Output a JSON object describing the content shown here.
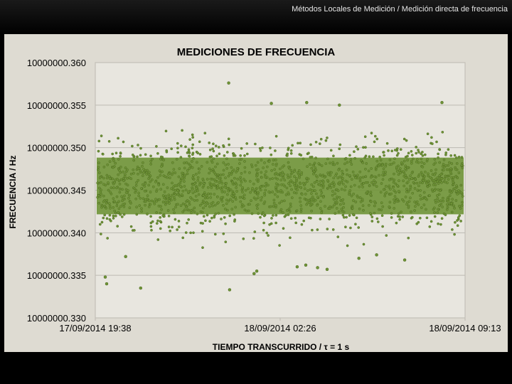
{
  "slide": {
    "title": "Métodos Locales de Medición / Medición directa de frecuencia"
  },
  "colors": {
    "slide_background": "#000000",
    "chart_panel": "#dedbd2",
    "plot_area": "#e8e6df",
    "series": "#6f9437",
    "series_dark": "#4d6a21",
    "gridline": "#bdbab2"
  },
  "chart_data": {
    "type": "scatter",
    "title": "MEDICIONES DE FRECUENCIA",
    "xlabel": "TIEMPO TRANSCURRIDO  / τ = 1 s",
    "ylabel": "FRECUENCIA / Hz",
    "ylim": [
      10000000.33,
      10000000.36
    ],
    "xlim": [
      "2014-09-17 19:38",
      "2014-09-18 09:13"
    ],
    "y_ticks": [
      "10000000.360",
      "10000000.355",
      "10000000.350",
      "10000000.345",
      "10000000.340",
      "10000000.335",
      "10000000.330"
    ],
    "x_ticks": [
      "17/09/2014 19:38",
      "18/09/2014 02:26",
      "18/09/2014 09:13"
    ],
    "grid": true,
    "legend": "none",
    "series_summary": {
      "band_center_hz": 10000000.3455,
      "band_lower_hz": 10000000.3415,
      "band_upper_hz": 10000000.3495,
      "sampling_interval": "1 s"
    },
    "points": [
      {
        "x": "2014-09-18 00:32",
        "y": 10000000.3576
      },
      {
        "x": "2014-09-18 02:06",
        "y": 10000000.3552
      },
      {
        "x": "2014-09-18 03:24",
        "y": 10000000.3553
      },
      {
        "x": "2014-09-18 04:36",
        "y": 10000000.355
      },
      {
        "x": "2014-09-18 08:22",
        "y": 10000000.3553
      },
      {
        "x": "2014-09-18 00:34",
        "y": 10000000.3333
      },
      {
        "x": "2014-09-17 21:18",
        "y": 10000000.3335
      },
      {
        "x": "2014-09-17 20:03",
        "y": 10000000.334
      },
      {
        "x": "2014-09-17 20:00",
        "y": 10000000.3348
      },
      {
        "x": "2014-09-18 01:34",
        "y": 10000000.3355
      },
      {
        "x": "2014-09-18 01:28",
        "y": 10000000.3352
      },
      {
        "x": "2014-09-18 03:03",
        "y": 10000000.336
      },
      {
        "x": "2014-09-18 03:22",
        "y": 10000000.3362
      },
      {
        "x": "2014-09-18 03:48",
        "y": 10000000.3359
      },
      {
        "x": "2014-09-17 20:45",
        "y": 10000000.3372
      },
      {
        "x": "2014-09-18 05:19",
        "y": 10000000.337
      },
      {
        "x": "2014-09-18 07:00",
        "y": 10000000.3368
      },
      {
        "x": "2014-09-18 05:58",
        "y": 10000000.3374
      },
      {
        "x": "2014-09-18 04:09",
        "y": 10000000.3357
      }
    ]
  }
}
